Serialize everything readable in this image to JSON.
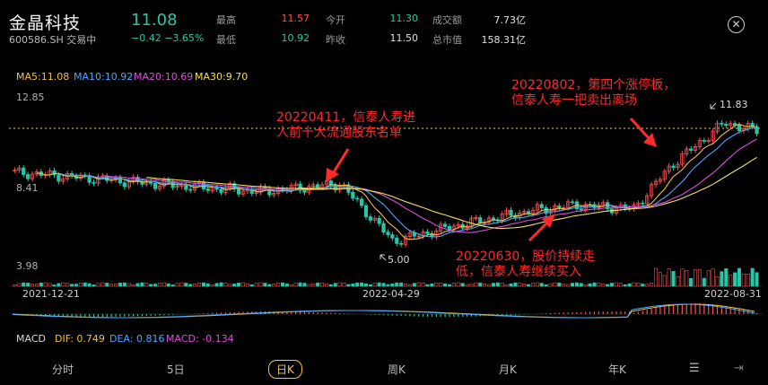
{
  "header": {
    "stock_name": "金晶科技",
    "stock_code": "600586.SH",
    "trading_status": "交易中",
    "last_price": "11.08",
    "change": "−0.42",
    "change_pct": "−3.65%",
    "stats": [
      {
        "label": "最高",
        "value": "11.57",
        "color": "#ff4d4f"
      },
      {
        "label": "今开",
        "value": "11.30",
        "color": "#26c6a6"
      },
      {
        "label": "成交额",
        "value": "7.73亿",
        "color": "#e0e0e0"
      },
      {
        "label": "最低",
        "value": "10.92",
        "color": "#26c6a6"
      },
      {
        "label": "昨收",
        "value": "11.50",
        "color": "#e0e0e0"
      },
      {
        "label": "总市值",
        "value": "158.31亿",
        "color": "#e0e0e0"
      }
    ],
    "close_icon": "close-circle-icon"
  },
  "ma_legend": [
    {
      "text": "MA5:11.08",
      "color": "#f0c040"
    },
    {
      "text": "MA10:10.92",
      "color": "#4aa8ff"
    },
    {
      "text": "MA20:10.69",
      "color": "#d84fd8"
    },
    {
      "text": "MA30:9.70",
      "color": "#f2e05a"
    }
  ],
  "price_axis": {
    "top": "12.85",
    "mid": "8.41",
    "bottom": "3.98"
  },
  "date_axis": {
    "start": "2021-12-21",
    "mid": "2022-04-29",
    "end": "2022-08-31"
  },
  "markers": {
    "high": "11.83",
    "low": "5.00"
  },
  "annotations": [
    {
      "line1": "20220411，信泰人寿进",
      "line2": "人前十大流通股东名单"
    },
    {
      "line1": "20220630，股价持续走",
      "line2": "低，信泰人寿继续买入"
    },
    {
      "line1": "20220802，第四个涨停板，",
      "line2": "信泰人寿一把卖出离场"
    }
  ],
  "macd": {
    "label": "MACD",
    "dif": "DIF: 0.749",
    "dea": "DEA: 0.816",
    "macd": "MACD: -0.134",
    "dif_color": "#f0c040",
    "dea_color": "#4aa8ff",
    "macd_color": "#d84fd8"
  },
  "tabs": [
    "分时",
    "5日",
    "日K",
    "周K",
    "月K",
    "年K"
  ],
  "active_tab": "日K",
  "tab_icons": [
    "settings-list-icon",
    "landscape-icon"
  ],
  "chart_data": {
    "type": "candlestick",
    "x_range": [
      "2021-12-21",
      "2022-08-31"
    ],
    "ylim": [
      3.98,
      12.85
    ],
    "close_series": [
      {
        "date": "2021-12-21",
        "close": 8.9
      },
      {
        "date": "2022-01-15",
        "close": 8.6
      },
      {
        "date": "2022-02-15",
        "close": 8.2
      },
      {
        "date": "2022-03-15",
        "close": 7.9
      },
      {
        "date": "2022-04-11",
        "close": 8.3
      },
      {
        "date": "2022-04-29",
        "close": 5.3
      },
      {
        "date": "2022-05-20",
        "close": 6.1
      },
      {
        "date": "2022-06-15",
        "close": 6.9
      },
      {
        "date": "2022-06-30",
        "close": 7.2
      },
      {
        "date": "2022-07-20",
        "close": 7.0
      },
      {
        "date": "2022-08-02",
        "close": 9.3
      },
      {
        "date": "2022-08-20",
        "close": 11.5
      },
      {
        "date": "2022-08-31",
        "close": 11.08
      }
    ],
    "high_label": "11.83",
    "low_label": "5.00"
  }
}
